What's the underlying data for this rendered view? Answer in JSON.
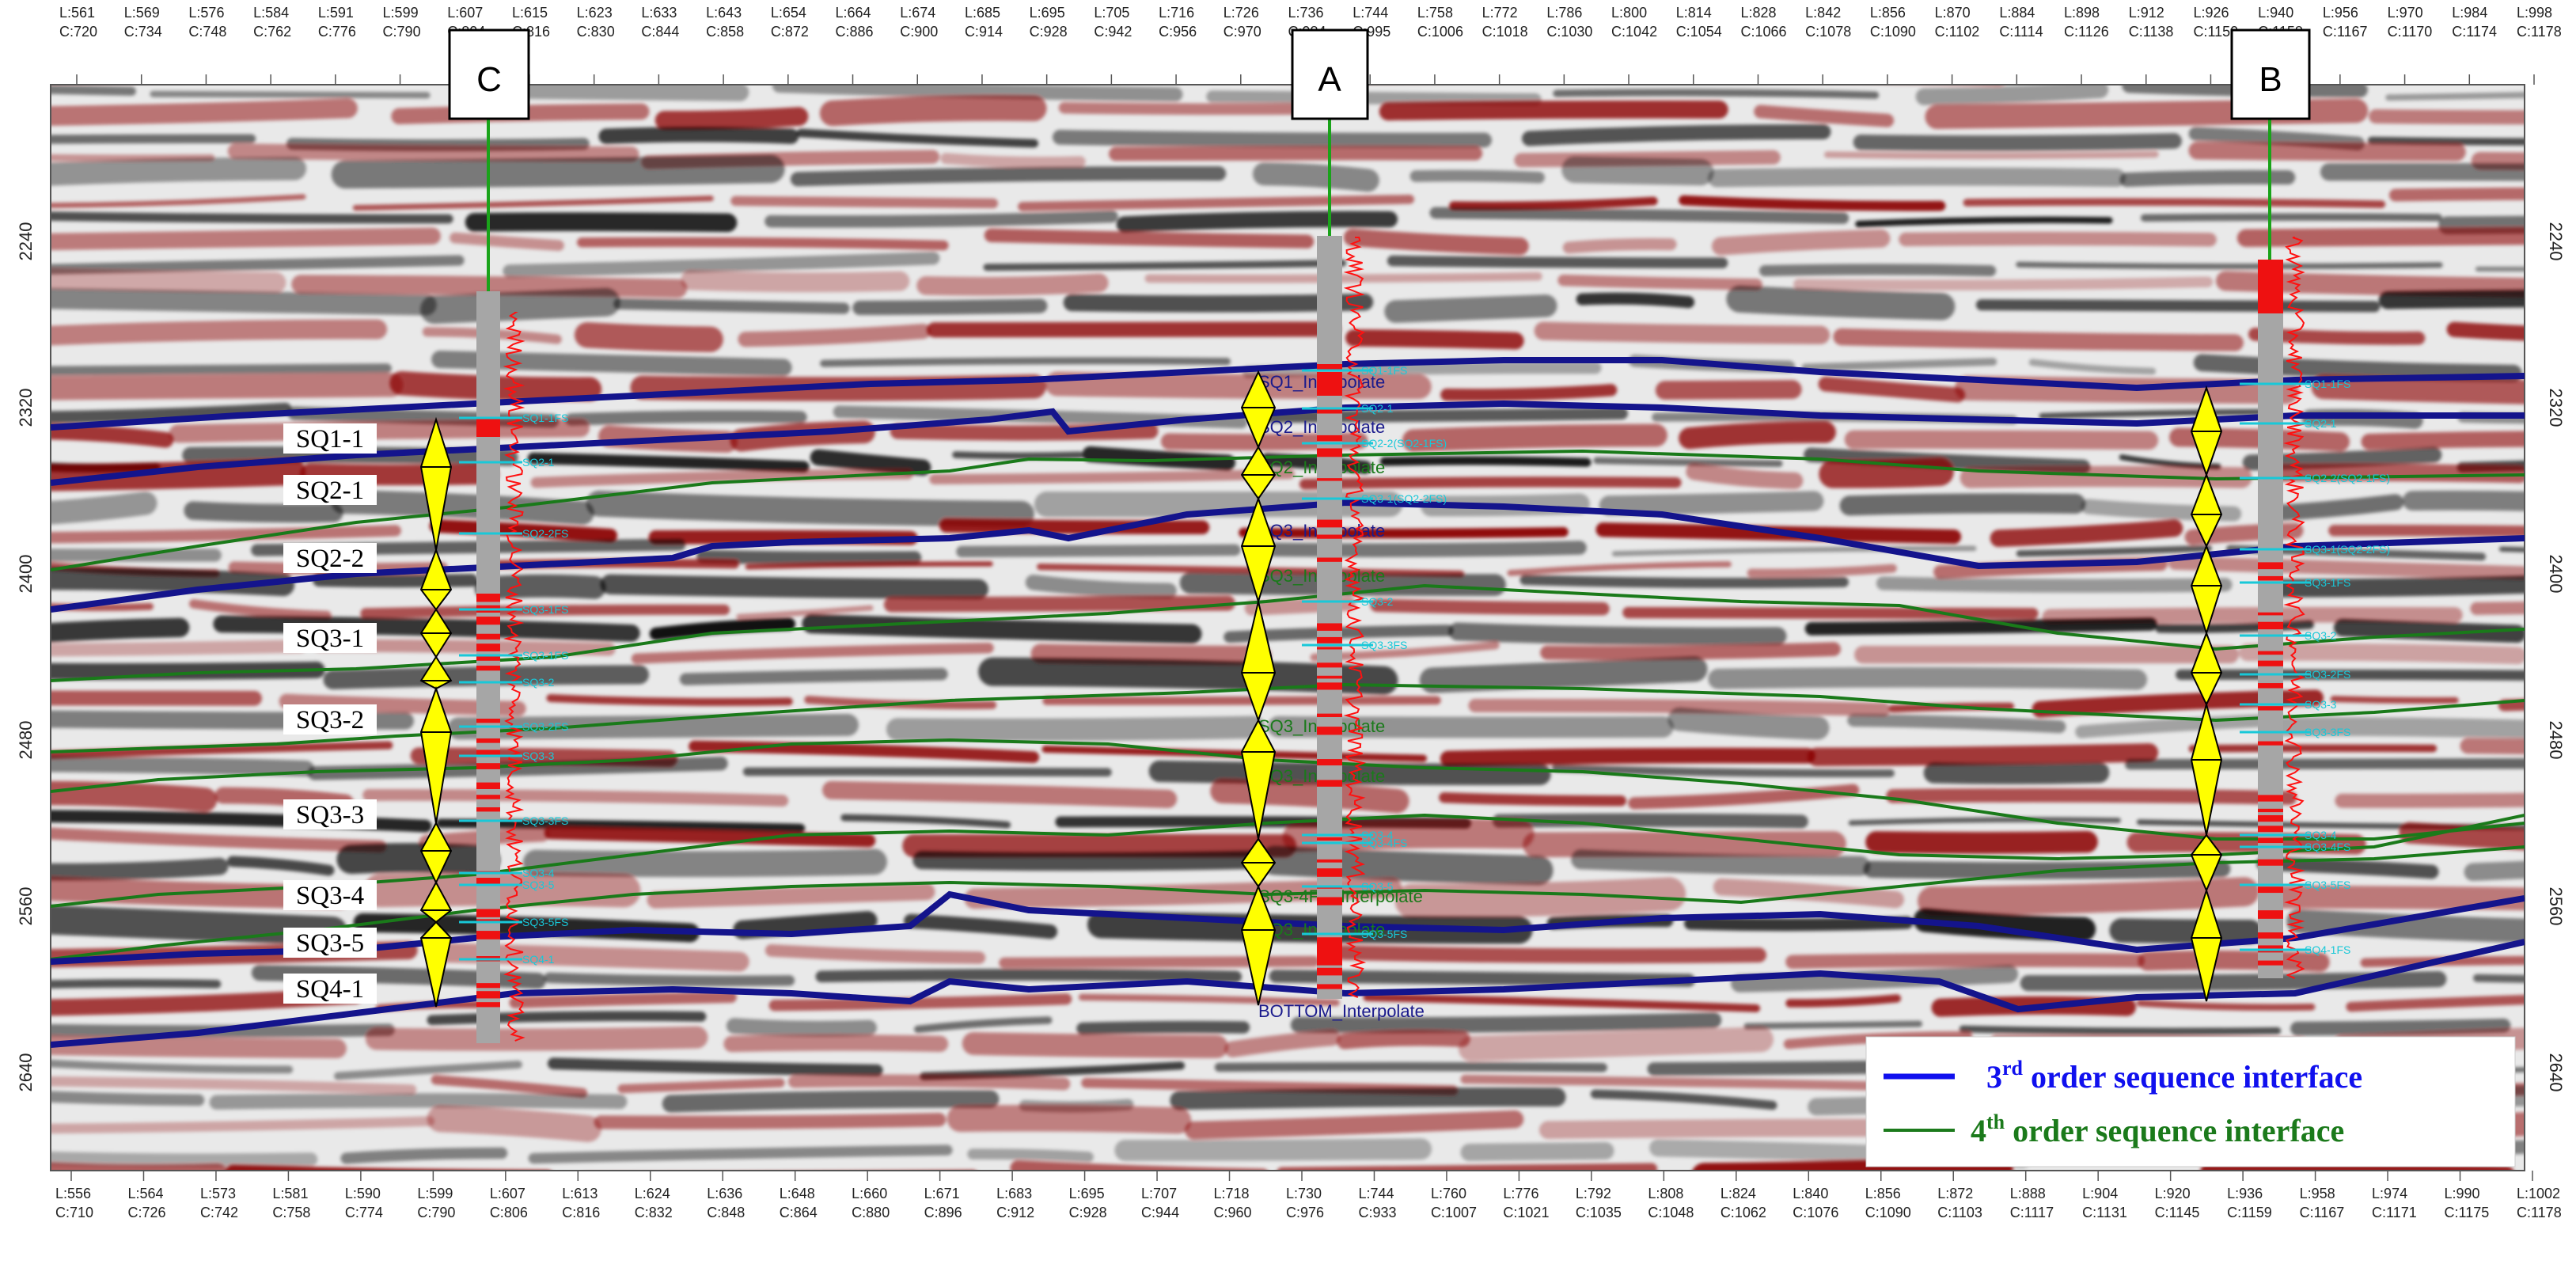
{
  "inline_labels_top": [
    "L:561",
    "L:569",
    "L:576",
    "L:584",
    "L:591",
    "L:599",
    "L:607",
    "L:615",
    "L:623",
    "L:633",
    "L:643",
    "L:654",
    "L:664",
    "L:674",
    "L:685",
    "L:695",
    "L:705",
    "L:716",
    "L:726",
    "L:736",
    "L:744",
    "L:758",
    "L:772",
    "L:786",
    "L:800",
    "L:814",
    "L:828",
    "L:842",
    "L:856",
    "L:870",
    "L:884",
    "L:898",
    "L:912",
    "L:926",
    "L:940",
    "L:956",
    "L:970",
    "L:984",
    "L:998"
  ],
  "crossline_labels_top": [
    "C:720",
    "C:734",
    "C:748",
    "C:762",
    "C:776",
    "C:790",
    "C:804",
    "C:816",
    "C:830",
    "C:844",
    "C:858",
    "C:872",
    "C:886",
    "C:900",
    "C:914",
    "C:928",
    "C:942",
    "C:956",
    "C:970",
    "C:984",
    "C:995",
    "C:1006",
    "C:1018",
    "C:1030",
    "C:1042",
    "C:1054",
    "C:1066",
    "C:1078",
    "C:1090",
    "C:1102",
    "C:1114",
    "C:1126",
    "C:1138",
    "C:1150",
    "C:1158",
    "C:1167",
    "C:1170",
    "C:1174",
    "C:1178"
  ],
  "inline_labels_bottom": [
    "L:556",
    "L:564",
    "L:573",
    "L:581",
    "L:590",
    "L:599",
    "L:607",
    "L:613",
    "L:624",
    "L:636",
    "L:648",
    "L:660",
    "L:671",
    "L:683",
    "L:695",
    "L:707",
    "L:718",
    "L:730",
    "L:744",
    "L:760",
    "L:776",
    "L:792",
    "L:808",
    "L:824",
    "L:840",
    "L:856",
    "L:872",
    "L:888",
    "L:904",
    "L:920",
    "L:936",
    "L:958",
    "L:974",
    "L:990",
    "L:1002"
  ],
  "crossline_labels_bottom": [
    "C:710",
    "C:726",
    "C:742",
    "C:758",
    "C:774",
    "C:790",
    "C:806",
    "C:816",
    "C:832",
    "C:848",
    "C:864",
    "C:880",
    "C:896",
    "C:912",
    "C:928",
    "C:944",
    "C:960",
    "C:976",
    "C:933",
    "C:1007",
    "C:1021",
    "C:1035",
    "C:1048",
    "C:1062",
    "C:1076",
    "C:1090",
    "C:1103",
    "C:1117",
    "C:1131",
    "C:1145",
    "C:1159",
    "C:1167",
    "C:1171",
    "C:1175",
    "C:1178"
  ],
  "time_axis": {
    "ticks": [
      2240,
      2320,
      2400,
      2480,
      2560,
      2640
    ]
  },
  "wells": [
    {
      "name": "C"
    },
    {
      "name": "A"
    },
    {
      "name": "B"
    }
  ],
  "sequences": [
    "SQ1-1",
    "SQ2-1",
    "SQ2-2",
    "SQ3-1",
    "SQ3-2",
    "SQ3-3",
    "SQ3-4",
    "SQ3-5",
    "SQ4-1"
  ],
  "interpolate_labels": [
    "SQ1_Interpolate",
    "SQ2_Interpolate",
    "SQ2_Interpolate",
    "SQ3_Interpolate",
    "SQ3_Interpolate",
    "SQ3_Interpolate",
    "SQ3_Interpolate",
    "SQ3-4FS_Interpolate",
    "SQ3_Interpolate",
    "BOTTOM_Interpolate"
  ],
  "well_c_markers": [
    "SQ1-1FS",
    "SQ2-1",
    "SQ2-2FS",
    "SQ3-1FS",
    "SQ3-1FS",
    "SQ3-2",
    "SQ3-2FS",
    "SQ3-3",
    "SQ3-3FS",
    "SQ3-4",
    "SQ3-5",
    "SQ3-5FS",
    "SQ4-1"
  ],
  "well_a_markers": [
    "SQ1-1FS",
    "SQ2-1",
    "SQ2-2(SQ2-1FS)",
    "SQ3-1(SQ2-2FS)",
    "SQ3-2",
    "SQ3-3FS",
    "SQ3-4",
    "SQ3-4FS",
    "SQ3-5",
    "SQ3-5FS"
  ],
  "well_b_markers": [
    "SQ1-1FS",
    "SQ2-1",
    "SQ2-2(SQ2-1FS)",
    "SQ3-1(SQ2-2FS)",
    "SQ3-1FS",
    "SQ3-2",
    "SQ3-2FS",
    "SQ3-3",
    "SQ3-3FS",
    "SQ3-4",
    "SQ3-4FS",
    "SQ3-5FS",
    "SQ4-1FS"
  ],
  "legend": {
    "third": {
      "sup": "rd",
      "pre": "3",
      "text": " order sequence interface",
      "color": "#1010ee"
    },
    "fourth": {
      "sup": "th",
      "pre": "4",
      "text": " order sequence interface",
      "color": "#1b7a1b"
    }
  },
  "colors": {
    "third_order": "#14148c",
    "fourth_order": "#1a7a1a",
    "well_track": "#a0a0a0",
    "triangle": "#ffff00",
    "marker": "#18c8d8",
    "seismic_positive": "#8b0000",
    "seismic_negative": "#000000"
  }
}
